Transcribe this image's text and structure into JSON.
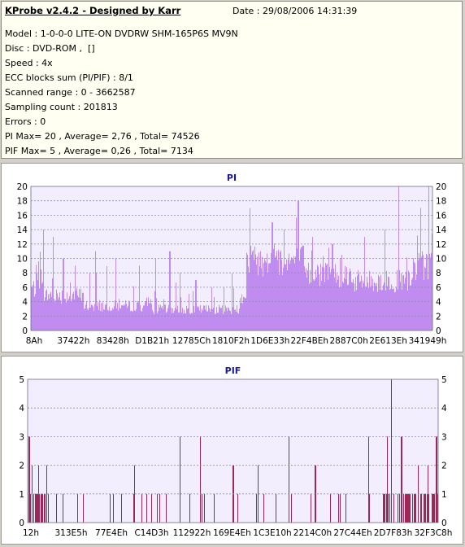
{
  "header": {
    "title": "KProbe v2.4.2 - Designed by Karr",
    "date_label": "Date : 29/08/2006 14:31:39"
  },
  "info": {
    "model": "Model : 1-0-0-0 LITE-ON DVDRW SHM-165P6S MV9N",
    "disc": "Disc : DVD-ROM ,  []",
    "speed": "Speed : 4x",
    "ecc": "ECC blocks sum (PI/PIF) : 8/1",
    "range": "Scanned range : 0 - 3662587",
    "sampling": "Sampling count : 201813",
    "errors": "Errors : 0",
    "pi_stats": "PI Max= 20 , Average= 2,76 , Total= 74526",
    "pif_stats": "PIF Max= 5 , Average= 0,26 , Total= 7134"
  },
  "colors": {
    "pi_bar": "#c08cf0",
    "pif_bar": "#9c2858",
    "plot_bg": "#f2eefe",
    "grid": "#8a8ab0",
    "title": "#1a1a8c"
  },
  "chart_data": [
    {
      "type": "bar",
      "title": "PI",
      "ylim": [
        0,
        20
      ],
      "yticks": [
        0,
        2,
        4,
        6,
        8,
        10,
        12,
        14,
        16,
        18,
        20
      ],
      "xtick_labels": [
        "8Ah",
        "37422h",
        "83428h",
        "D1B21h",
        "12785Ch",
        "1810F2h",
        "1D6E33h",
        "22F4BEh",
        "2887C0h",
        "2E613Eh",
        "341949h"
      ],
      "grid": "horizontal dotted",
      "baseline_segments": [
        {
          "from": 0.0,
          "to": 0.03,
          "value": 6
        },
        {
          "from": 0.03,
          "to": 0.13,
          "value": 5
        },
        {
          "from": 0.13,
          "to": 0.3,
          "value": 3.5
        },
        {
          "from": 0.3,
          "to": 0.52,
          "value": 3
        },
        {
          "from": 0.52,
          "to": 0.535,
          "value": 5
        },
        {
          "from": 0.535,
          "to": 0.68,
          "value": 10
        },
        {
          "from": 0.68,
          "to": 0.8,
          "value": 8
        },
        {
          "from": 0.8,
          "to": 0.95,
          "value": 7
        },
        {
          "from": 0.95,
          "to": 1.0,
          "value": 9
        }
      ],
      "peaks": [
        {
          "x": 0.03,
          "y": 14
        },
        {
          "x": 0.055,
          "y": 13
        },
        {
          "x": 0.08,
          "y": 10
        },
        {
          "x": 0.11,
          "y": 9
        },
        {
          "x": 0.16,
          "y": 11
        },
        {
          "x": 0.21,
          "y": 10
        },
        {
          "x": 0.27,
          "y": 9
        },
        {
          "x": 0.31,
          "y": 10
        },
        {
          "x": 0.345,
          "y": 11
        },
        {
          "x": 0.37,
          "y": 8
        },
        {
          "x": 0.41,
          "y": 7
        },
        {
          "x": 0.45,
          "y": 6
        },
        {
          "x": 0.48,
          "y": 6
        },
        {
          "x": 0.545,
          "y": 17
        },
        {
          "x": 0.6,
          "y": 15
        },
        {
          "x": 0.63,
          "y": 14
        },
        {
          "x": 0.665,
          "y": 18
        },
        {
          "x": 0.7,
          "y": 13
        },
        {
          "x": 0.75,
          "y": 12
        },
        {
          "x": 0.83,
          "y": 13
        },
        {
          "x": 0.88,
          "y": 14
        },
        {
          "x": 0.915,
          "y": 20
        },
        {
          "x": 0.97,
          "y": 17
        },
        {
          "x": 0.99,
          "y": 20
        }
      ]
    },
    {
      "type": "bar",
      "title": "PIF",
      "ylim": [
        0,
        5
      ],
      "yticks": [
        0,
        1,
        2,
        3,
        4,
        5
      ],
      "xtick_labels": [
        "12h",
        "313E5h",
        "77E4Eh",
        "C14D3h",
        "112922h",
        "169E4Eh",
        "1C3E10h",
        "2214C0h",
        "27C44Eh",
        "2D7F83h",
        "32F3C8h"
      ],
      "grid": "horizontal dotted",
      "baseline_segments": [
        {
          "from": 0.0,
          "to": 0.04,
          "value": 1
        },
        {
          "from": 0.04,
          "to": 0.86,
          "value": 0
        },
        {
          "from": 0.86,
          "to": 1.0,
          "value": 1
        }
      ],
      "peaks": [
        {
          "x": 0.003,
          "y": 3
        },
        {
          "x": 0.01,
          "y": 2
        },
        {
          "x": 0.025,
          "y": 2
        },
        {
          "x": 0.045,
          "y": 2
        },
        {
          "x": 0.07,
          "y": 1
        },
        {
          "x": 0.12,
          "y": 1
        },
        {
          "x": 0.2,
          "y": 1
        },
        {
          "x": 0.26,
          "y": 2
        },
        {
          "x": 0.315,
          "y": 1
        },
        {
          "x": 0.37,
          "y": 3
        },
        {
          "x": 0.42,
          "y": 3
        },
        {
          "x": 0.5,
          "y": 2
        },
        {
          "x": 0.56,
          "y": 2
        },
        {
          "x": 0.635,
          "y": 3
        },
        {
          "x": 0.7,
          "y": 2
        },
        {
          "x": 0.76,
          "y": 1
        },
        {
          "x": 0.83,
          "y": 3
        },
        {
          "x": 0.875,
          "y": 3
        },
        {
          "x": 0.885,
          "y": 5
        },
        {
          "x": 0.91,
          "y": 3
        },
        {
          "x": 0.95,
          "y": 2
        },
        {
          "x": 0.975,
          "y": 2
        },
        {
          "x": 0.995,
          "y": 3
        }
      ]
    }
  ]
}
